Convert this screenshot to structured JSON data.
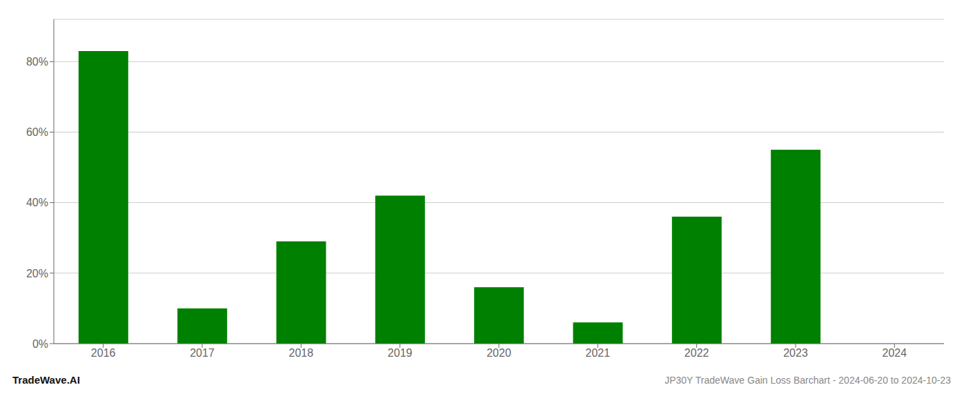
{
  "chart_data": {
    "type": "bar",
    "categories": [
      "2016",
      "2017",
      "2018",
      "2019",
      "2020",
      "2021",
      "2022",
      "2023",
      "2024"
    ],
    "values": [
      0.83,
      0.1,
      0.29,
      0.42,
      0.16,
      0.06,
      0.36,
      0.55,
      0.0
    ],
    "color": "#008000",
    "ylim": [
      0,
      0.92
    ],
    "yticks": [
      {
        "value": 0,
        "label": "0%"
      },
      {
        "value": 0.2,
        "label": "20%"
      },
      {
        "value": 0.4,
        "label": "40%"
      },
      {
        "value": 0.6,
        "label": "60%"
      },
      {
        "value": 0.8,
        "label": "80%"
      }
    ],
    "grid": true,
    "annotations": [
      "TradeWave.AI",
      "JP30Y TradeWave Gain Loss Barchart - 2024-06-20 to 2024-10-23"
    ]
  }
}
